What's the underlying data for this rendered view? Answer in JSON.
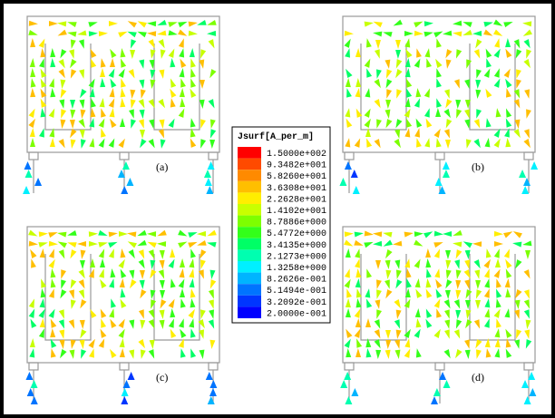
{
  "legend": {
    "title": "Jsurf[A_per_m]",
    "labels": [
      "1.5000e+002",
      "9.3482e+001",
      "5.8260e+001",
      "3.6308e+001",
      "2.2628e+001",
      "1.4102e+001",
      "8.7886e+000",
      "5.4772e+000",
      "3.4135e+000",
      "2.1273e+000",
      "1.3258e+000",
      "8.2626e-001",
      "5.1494e-001",
      "3.2092e-001",
      "2.0000e-001"
    ]
  },
  "panels": [
    {
      "label": "(a)"
    },
    {
      "label": "(b)"
    },
    {
      "label": "(c)"
    },
    {
      "label": "(d)"
    }
  ]
}
